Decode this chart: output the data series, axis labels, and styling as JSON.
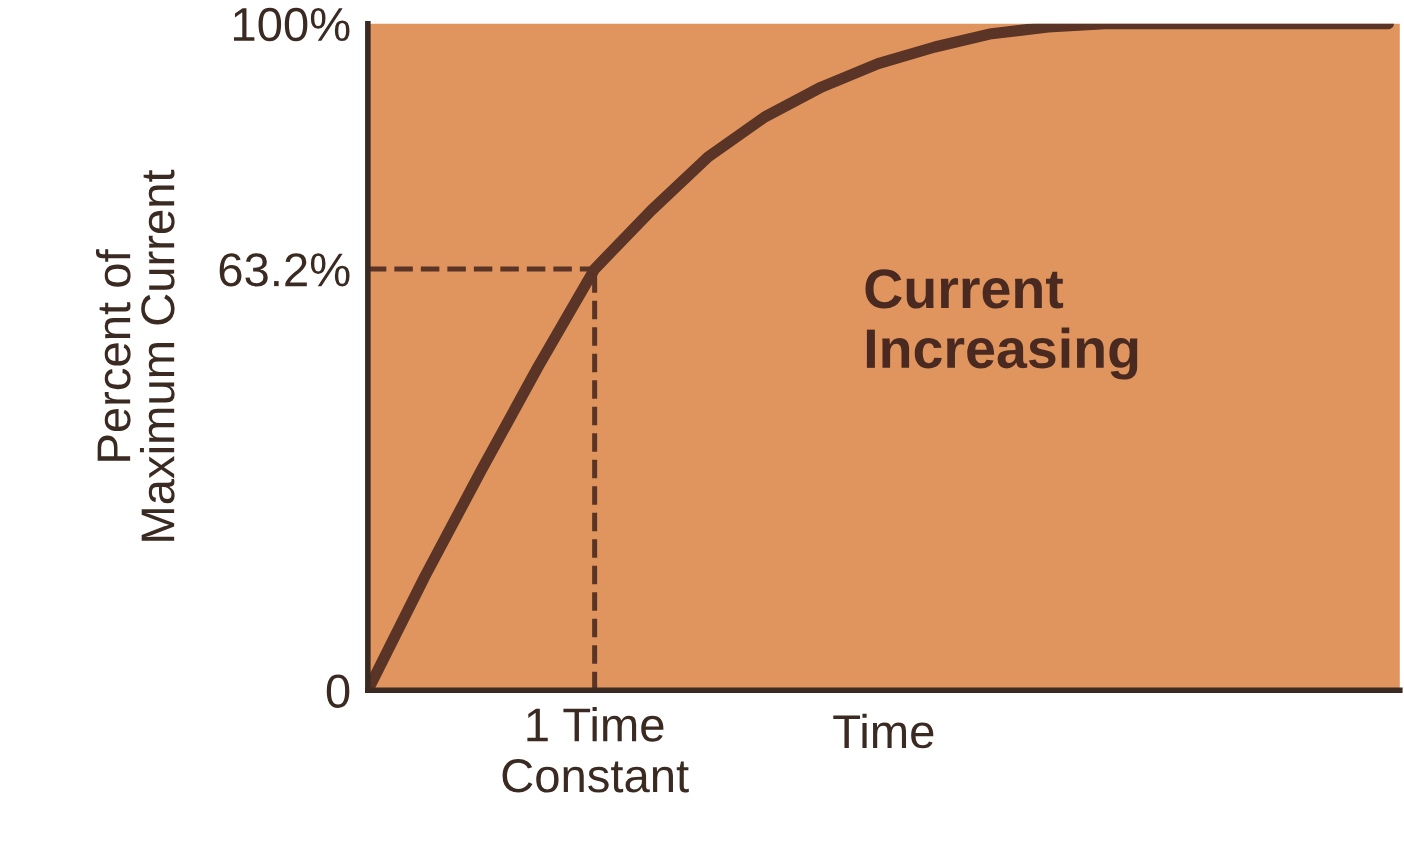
{
  "chart_data": {
    "type": "line",
    "xlabel": "Time",
    "ylabel": "Percent of\nMaximum Current",
    "categories": [
      null,
      null,
      null,
      null,
      "1 Time\nConstant",
      null,
      null,
      null,
      null,
      null,
      null,
      null,
      null,
      null,
      null,
      null,
      null,
      null,
      null
    ],
    "series": [
      {
        "color": "#5a3426",
        "values": [
          0,
          17,
          33,
          48.5,
          63.2,
          72,
          80,
          86,
          90.5,
          94,
          96.5,
          98.5,
          99.5,
          100,
          100,
          100,
          100,
          100,
          100
        ]
      }
    ],
    "ylim": [
      0,
      100
    ],
    "yticks": [
      {
        "value": 0,
        "label": "0"
      },
      {
        "value": 63.2,
        "label": "63.2%"
      },
      {
        "value": 100,
        "label": "100%"
      }
    ],
    "ref_lines": [
      {
        "axis": "y",
        "value": 63.2,
        "color": "#5a3426",
        "line_style": "dashed"
      },
      {
        "axis": "x",
        "value": "1 Time\nConstant",
        "color": "#5a3426",
        "line_style": "dashed"
      }
    ],
    "annotations": [
      "Current\nIncreasing"
    ],
    "grid": false,
    "legend": false,
    "marker": "none",
    "line_style": "solid"
  }
}
